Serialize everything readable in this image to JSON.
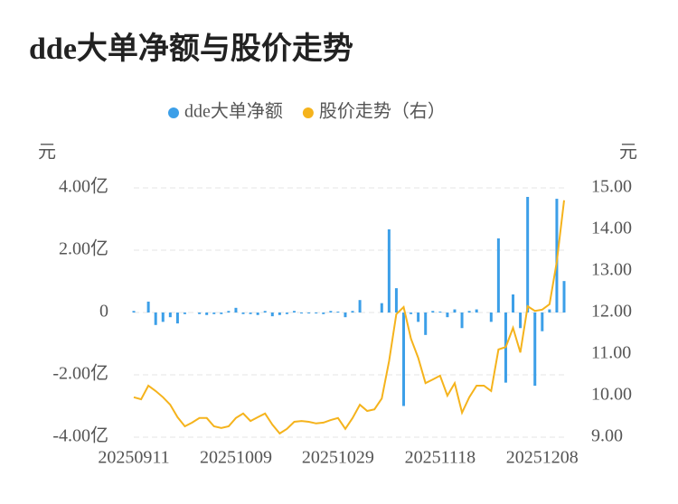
{
  "chart_data": {
    "type": "bar",
    "title": "dde大单净额与股价走势",
    "y_label": "元",
    "y2_label": "元",
    "categories": [
      "20250911",
      null,
      null,
      null,
      null,
      null,
      null,
      null,
      null,
      null,
      null,
      null,
      null,
      null,
      "20251009",
      null,
      null,
      null,
      null,
      null,
      null,
      null,
      null,
      null,
      null,
      null,
      null,
      null,
      "20251029",
      null,
      null,
      null,
      null,
      null,
      null,
      null,
      null,
      null,
      null,
      null,
      null,
      null,
      "20251118",
      null,
      null,
      null,
      null,
      null,
      null,
      null,
      null,
      null,
      null,
      null,
      null,
      null,
      "20251208",
      null,
      null,
      null
    ],
    "series": [
      {
        "name": "dde大单净额",
        "type": "bar",
        "color": "#3c9fe8",
        "axis": "y",
        "values": [
          0.05,
          0,
          0.35,
          -0.4,
          -0.3,
          -0.15,
          -0.35,
          -0.05,
          0,
          -0.05,
          -0.08,
          -0.05,
          -0.05,
          0.05,
          0.15,
          -0.05,
          -0.05,
          -0.08,
          0.05,
          -0.12,
          -0.08,
          -0.05,
          0.05,
          -0.03,
          -0.03,
          -0.03,
          -0.05,
          0.05,
          0.03,
          -0.15,
          0.05,
          0.4,
          0,
          0,
          0.3,
          2.67,
          0.78,
          -3.0,
          -0.05,
          -0.3,
          -0.72,
          0.05,
          0.03,
          -0.15,
          0.1,
          -0.5,
          0.05,
          0.1,
          0,
          -0.3,
          2.38,
          -2.25,
          0.58,
          -0.5,
          3.71,
          -2.35,
          -0.6,
          0.1,
          3.65,
          1.01
        ]
      },
      {
        "name": "股价走势（右）",
        "type": "line",
        "color": "#f5b31c",
        "axis": "y2",
        "values": [
          9.96,
          9.91,
          10.24,
          10.11,
          9.96,
          9.78,
          9.48,
          9.26,
          9.35,
          9.46,
          9.46,
          9.26,
          9.22,
          9.26,
          9.46,
          9.57,
          9.39,
          9.48,
          9.57,
          9.3,
          9.09,
          9.2,
          9.37,
          9.39,
          9.37,
          9.33,
          9.35,
          9.41,
          9.46,
          9.2,
          9.46,
          9.78,
          9.63,
          9.67,
          9.93,
          10.83,
          11.96,
          12.13,
          11.37,
          10.91,
          10.3,
          10.39,
          10.48,
          10.0,
          10.3,
          9.59,
          9.96,
          10.24,
          10.24,
          10.11,
          11.11,
          11.17,
          11.63,
          11.04,
          12.15,
          12.04,
          12.07,
          12.2,
          13.22,
          14.7
        ]
      }
    ],
    "ylim": [
      -4,
      4
    ],
    "yticks": [
      {
        "value": -4,
        "label": "-4.00亿"
      },
      {
        "value": -2,
        "label": "-2.00亿"
      },
      0,
      {
        "value": 2,
        "label": "2.00亿"
      },
      {
        "value": 4,
        "label": "4.00亿"
      }
    ],
    "y2lim": [
      9,
      15
    ],
    "y2ticks": [
      {
        "value": 9,
        "label": "9.00"
      },
      {
        "value": 10,
        "label": "10.00"
      },
      {
        "value": 11,
        "label": "11.00"
      },
      {
        "value": 12,
        "label": "12.00"
      },
      {
        "value": 13,
        "label": "13.00"
      },
      {
        "value": 14,
        "label": "14.00"
      },
      {
        "value": 15,
        "label": "15.00"
      }
    ],
    "grid": true,
    "legend": "top"
  }
}
